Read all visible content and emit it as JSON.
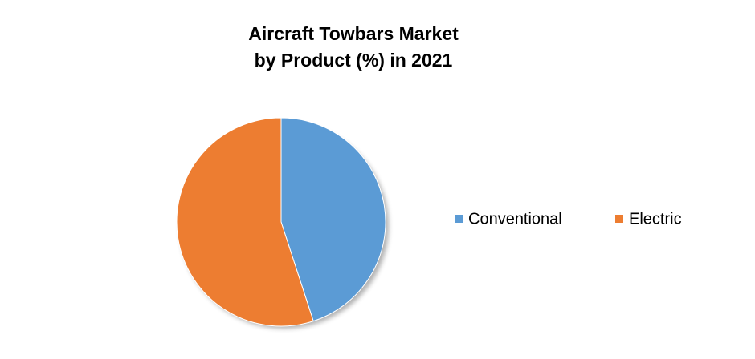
{
  "chart_data": {
    "type": "pie",
    "title": [
      "Aircraft Towbars Market",
      "by Product (%) in 2021"
    ],
    "categories": [
      "Conventional",
      "Electric"
    ],
    "values": [
      45,
      55
    ],
    "colors": [
      "#5b9bd5",
      "#ed7d31"
    ],
    "legend": "right"
  }
}
